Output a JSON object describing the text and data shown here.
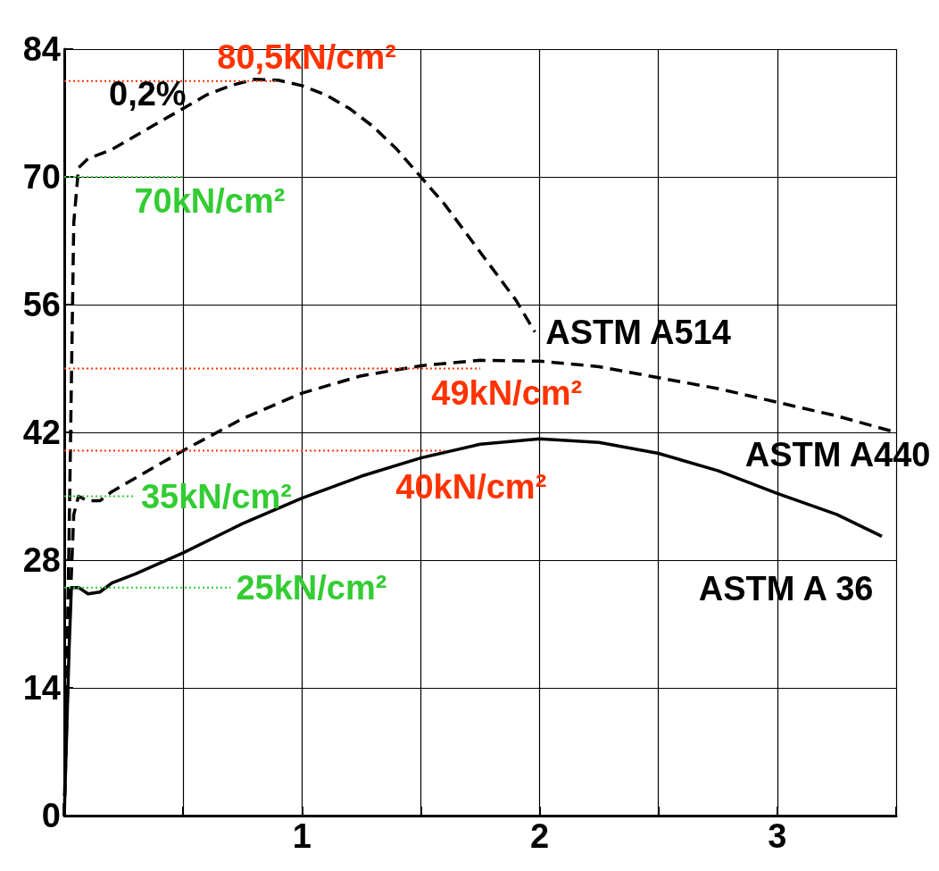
{
  "chart_data": {
    "type": "line",
    "xlim": [
      0,
      3.5
    ],
    "xticks": [
      {
        "value": 0,
        "label": null
      },
      {
        "value": 0.5,
        "label": null
      },
      1,
      {
        "value": 1.5,
        "label": null
      },
      2,
      {
        "value": 2.5,
        "label": null
      },
      3,
      {
        "value": 3.5,
        "label": null
      }
    ],
    "ylim": [
      0,
      84
    ],
    "yticks": [
      0,
      14,
      28,
      42,
      56,
      70,
      84
    ],
    "grid": true,
    "legend": false,
    "marker": "none",
    "annotations": [
      "0,2%"
    ],
    "series": [
      {
        "name": "ASTM A514",
        "color": "#000000",
        "line_style": "dashed",
        "x": [
          0,
          0.02,
          0.04,
          0.06,
          0.1,
          0.2,
          0.3,
          0.4,
          0.5,
          0.6,
          0.7,
          0.8,
          0.9,
          1.0,
          1.1,
          1.2,
          1.3,
          1.4,
          1.5,
          1.6,
          1.7,
          1.8,
          1.9,
          1.98
        ],
        "values": [
          0,
          30,
          65,
          71,
          72,
          73,
          74.5,
          76,
          77.5,
          79,
          80,
          80.7,
          80.6,
          80,
          79,
          77.5,
          75.5,
          73,
          70,
          67,
          63.5,
          60,
          56.5,
          53
        ]
      },
      {
        "name": "ASTM A440",
        "color": "#000000",
        "line_style": "dashed",
        "x": [
          0,
          0.02,
          0.04,
          0.06,
          0.1,
          0.15,
          0.2,
          0.3,
          0.5,
          0.75,
          1,
          1.25,
          1.5,
          1.75,
          2,
          2.25,
          2.5,
          2.75,
          3,
          3.25,
          3.5
        ],
        "values": [
          0,
          20,
          33,
          35,
          34.5,
          34.5,
          35.5,
          37,
          40,
          43.5,
          46.3,
          48.2,
          49.3,
          49.9,
          49.8,
          49.2,
          48,
          46.8,
          45.3,
          43.8,
          42
        ]
      },
      {
        "name": "ASTM A 36",
        "color": "#000000",
        "line_style": "solid",
        "x": [
          0,
          0.02,
          0.03,
          0.06,
          0.1,
          0.15,
          0.2,
          0.3,
          0.5,
          0.75,
          1,
          1.25,
          1.5,
          1.75,
          2,
          2.25,
          2.5,
          2.75,
          3,
          3.25,
          3.44
        ],
        "values": [
          0,
          18,
          25,
          25,
          24.3,
          24.5,
          25.5,
          26.5,
          28.8,
          32,
          34.8,
          37.2,
          39.2,
          40.7,
          41.3,
          40.9,
          39.7,
          37.8,
          35.3,
          33,
          30.6
        ]
      },
      {
        "name": "80,5kN/cm²",
        "color": "#ff3300",
        "line_style": "dotted",
        "x": [
          0,
          0.9
        ],
        "values": [
          80.5,
          80.5
        ]
      },
      {
        "name": "70kN/cm²",
        "color": "#33cc33",
        "line_style": "dotted",
        "x": [
          0,
          0.5
        ],
        "values": [
          70,
          70
        ]
      },
      {
        "name": "49kN/cm²",
        "color": "#ff3300",
        "line_style": "dotted",
        "x": [
          0,
          1.75
        ],
        "values": [
          49,
          49
        ]
      },
      {
        "name": "40kN/cm²",
        "color": "#ff3300",
        "line_style": "dotted",
        "x": [
          0,
          1.6
        ],
        "values": [
          40,
          40
        ]
      },
      {
        "name": "35kN/cm²",
        "color": "#33cc33",
        "line_style": "dotted",
        "x": [
          0,
          0.3
        ],
        "values": [
          35,
          35
        ]
      },
      {
        "name": "25kN/cm²",
        "color": "#33cc33",
        "line_style": "dotted",
        "x": [
          0,
          0.7
        ],
        "values": [
          25,
          25
        ]
      }
    ]
  }
}
